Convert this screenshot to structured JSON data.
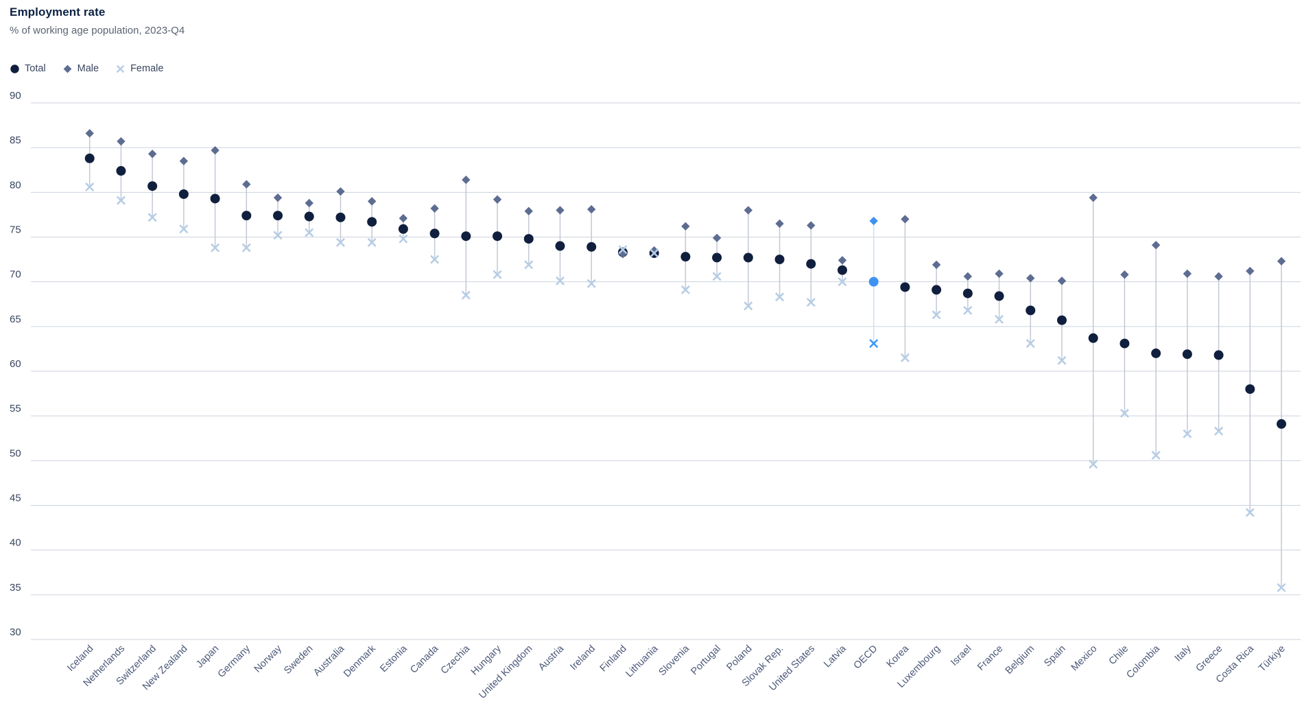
{
  "header": {
    "title": "Employment rate",
    "subtitle": "% of working age population, 2023-Q4"
  },
  "legend": {
    "total_label": "Total",
    "male_label": "Male",
    "female_label": "Female"
  },
  "colors": {
    "total": "#101f3d",
    "male": "#5d6c91",
    "female": "#b7cde5",
    "connector": "#c3c8d5",
    "highlight": "#3e92f2",
    "highlight_female": "#3e97f6",
    "highlight_connector": "#c9defa",
    "gridline": "#ccd2dd",
    "axis_label": "#39455f",
    "category_label": "#4b5878",
    "title": "#0c2244",
    "subtitle": "#5a6372"
  },
  "chart_data": {
    "type": "scatter",
    "variant": "dot-range",
    "title": "Employment rate",
    "subtitle": "% of working age population, 2023-Q4",
    "unit": "%",
    "period": "2023-Q4",
    "grid": true,
    "legend_position": "top-left",
    "ylim": [
      30,
      90
    ],
    "ytick_step": 5,
    "ytick_labels": [
      "30",
      "35",
      "40",
      "45",
      "50",
      "55",
      "60",
      "65",
      "70",
      "75",
      "80",
      "85",
      "90"
    ],
    "highlight_category": "OECD",
    "categories": [
      "Iceland",
      "Netherlands",
      "Switzerland",
      "New Zealand",
      "Japan",
      "Germany",
      "Norway",
      "Sweden",
      "Australia",
      "Denmark",
      "Estonia",
      "Canada",
      "Czechia",
      "Hungary",
      "United Kingdom",
      "Austria",
      "Ireland",
      "Finland",
      "Lithuania",
      "Slovenia",
      "Portugal",
      "Poland",
      "Slovak Rep.",
      "United States",
      "Latvia",
      "OECD",
      "Korea",
      "Luxembourg",
      "Israel",
      "France",
      "Belgium",
      "Spain",
      "Mexico",
      "Chile",
      "Colombia",
      "Italy",
      "Greece",
      "Costa Rica",
      "Türkiye"
    ],
    "series": [
      {
        "name": "Total",
        "marker": "circle",
        "values": [
          83.8,
          82.4,
          80.7,
          79.8,
          79.3,
          77.4,
          77.4,
          77.3,
          77.2,
          76.7,
          75.9,
          75.4,
          75.1,
          75.1,
          74.8,
          74.0,
          73.9,
          73.3,
          73.2,
          72.8,
          72.7,
          72.7,
          72.5,
          72.0,
          71.3,
          70.0,
          69.4,
          69.1,
          68.7,
          68.4,
          66.8,
          65.7,
          63.7,
          63.1,
          62.0,
          61.9,
          61.8,
          58.0,
          54.1
        ]
      },
      {
        "name": "Male",
        "marker": "diamond",
        "values": [
          86.6,
          85.7,
          84.3,
          83.5,
          84.7,
          80.9,
          79.4,
          78.8,
          80.1,
          79.0,
          77.1,
          78.2,
          81.4,
          79.2,
          77.9,
          78.0,
          78.1,
          73.1,
          73.5,
          76.2,
          74.9,
          78.0,
          76.5,
          76.3,
          72.4,
          76.8,
          77.0,
          71.9,
          70.6,
          70.9,
          70.4,
          70.1,
          79.4,
          70.8,
          74.1,
          70.9,
          70.6,
          71.2,
          72.3
        ]
      },
      {
        "name": "Female",
        "marker": "x",
        "values": [
          80.6,
          79.1,
          77.2,
          75.9,
          73.8,
          73.8,
          75.2,
          75.5,
          74.4,
          74.4,
          74.8,
          72.5,
          68.5,
          70.8,
          71.9,
          70.1,
          69.8,
          73.6,
          73.2,
          69.1,
          70.6,
          67.3,
          68.3,
          67.7,
          70.0,
          63.1,
          61.5,
          66.3,
          66.8,
          65.8,
          63.1,
          61.2,
          49.6,
          55.3,
          50.6,
          53.0,
          53.3,
          44.2,
          35.8
        ]
      }
    ]
  }
}
